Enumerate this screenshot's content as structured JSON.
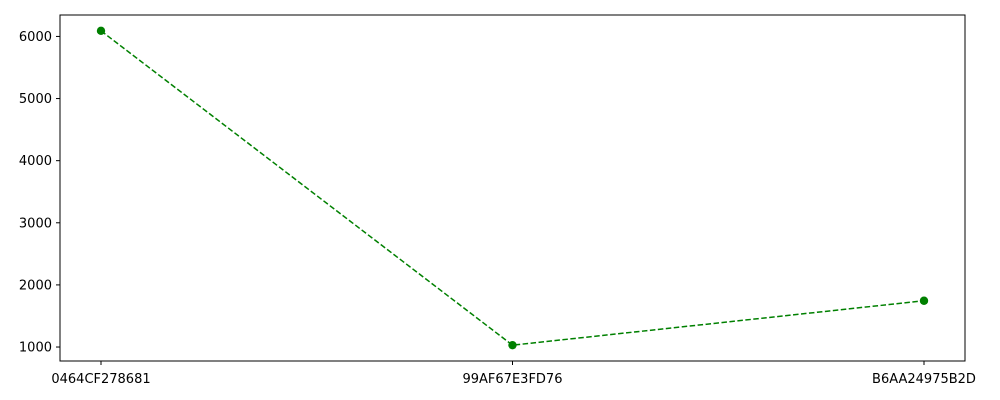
{
  "chart_data": {
    "type": "line",
    "categories": [
      "0464CF278681",
      "99AF67E3FD76",
      "B6AA24975B2D"
    ],
    "values": [
      6090,
      1030,
      1745
    ],
    "y_ticks": [
      1000,
      2000,
      3000,
      4000,
      5000,
      6000
    ],
    "ylim": [
      775,
      6345
    ],
    "line_style": "dashed",
    "marker": "circle",
    "color": "#008000",
    "grid": false,
    "legend": "none"
  }
}
